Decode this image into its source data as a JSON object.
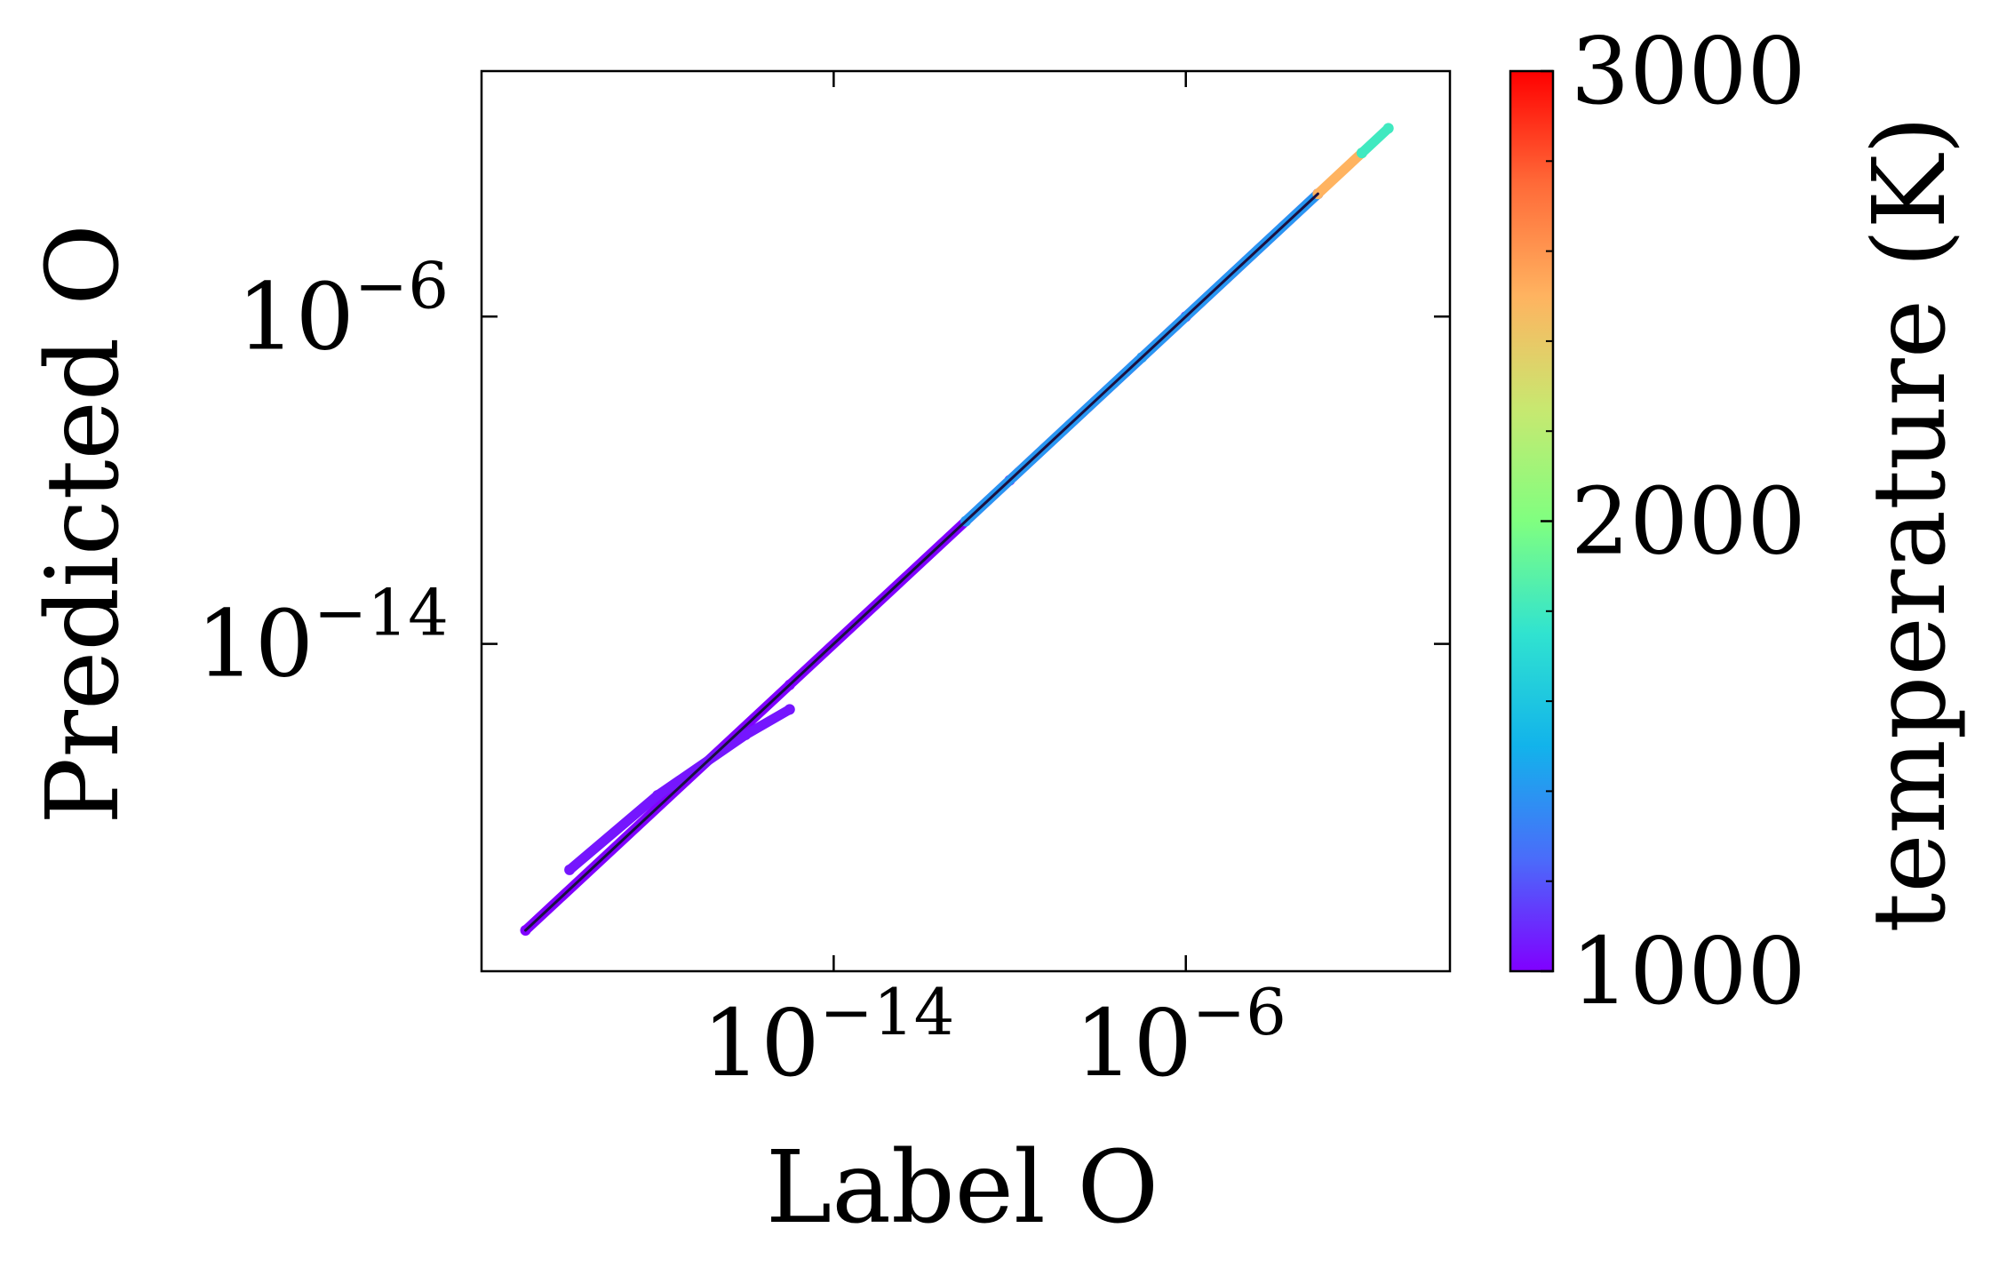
{
  "chart_data": {
    "type": "scatter",
    "title": "",
    "xlabel": "Label O",
    "ylabel": "Predicted O",
    "xscale": "log",
    "yscale": "log",
    "xlim": [
      1e-22,
      1.0
    ],
    "ylim": [
      1e-22,
      1.0
    ],
    "xticks": [
      {
        "value": 1e-14,
        "base": "10",
        "exp": "−14"
      },
      {
        "value": 1e-06,
        "base": "10",
        "exp": "−6"
      }
    ],
    "yticks": [
      {
        "value": 1e-14,
        "base": "10",
        "exp": "−14"
      },
      {
        "value": 1e-06,
        "base": "10",
        "exp": "−6"
      }
    ],
    "grid": false,
    "colorbar": {
      "label": "temperature (K)",
      "min": 1000,
      "max": 3000,
      "ticks": [
        "1000",
        "2000",
        "3000"
      ],
      "colormap": "rainbow",
      "colors": [
        "#8000ff",
        "#4a6cfa",
        "#12b3eb",
        "#30e3d0",
        "#80ff80",
        "#c8e870",
        "#ffb360",
        "#ff6a38",
        "#ff0000"
      ]
    },
    "series": [
      {
        "segments": [
          {
            "x": [
              1e-21,
              1e-15,
              1e-10,
              1e-06,
              0.001
            ],
            "y": [
              1e-21,
              1e-15,
              1e-10,
              1e-06,
              0.001
            ],
            "temperature": 1000
          },
          {
            "x": [
              1e-20,
              1e-18,
              1e-16,
              1e-15
            ],
            "y": [
              3e-20,
              2e-18,
              6e-17,
              2.5e-16
            ],
            "temperature": 1050
          },
          {
            "x": [
              1e-11,
              1e-07,
              0.001
            ],
            "y": [
              1e-11,
              1e-07,
              0.001
            ],
            "temperature": 1400
          },
          {
            "x": [
              0.001,
              0.01
            ],
            "y": [
              0.001,
              0.01
            ],
            "temperature": 2500
          },
          {
            "x": [
              0.01,
              0.04
            ],
            "y": [
              0.01,
              0.04
            ],
            "temperature": 1800
          }
        ]
      }
    ]
  }
}
